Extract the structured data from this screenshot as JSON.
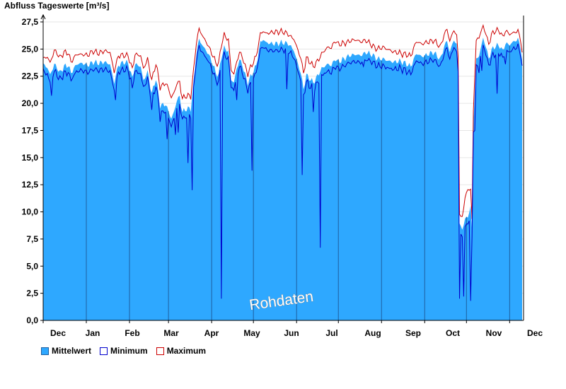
{
  "chart_data": {
    "type": "area",
    "title": "Abfluss Tageswerte [m³/s]",
    "xlabel": "",
    "ylabel": "Abfluss Tageswerte [m³/s]",
    "ylim": [
      0,
      27.5
    ],
    "yticks": [
      "0,0",
      "2,5",
      "5,0",
      "7,5",
      "10,0",
      "12,5",
      "15,0",
      "17,5",
      "20,0",
      "22,5",
      "25,0",
      "27,5"
    ],
    "xticks": [
      "Dec",
      "Jan",
      "Feb",
      "Mar",
      "Apr",
      "May",
      "Jun",
      "Jul",
      "Aug",
      "Sep",
      "Oct",
      "Nov",
      "Dec"
    ],
    "grid": true,
    "legend_position": "bottom-left",
    "watermark": "Rohdaten",
    "colors": {
      "mittelwert": "#2ea8ff",
      "minimum": "#0000cc",
      "maximum": "#cc0000",
      "month_line": "#1e5fa0"
    },
    "month_starts": [
      0,
      31,
      62,
      90,
      121,
      151,
      182,
      212,
      243,
      274,
      304,
      335,
      365
    ],
    "mean_anchors": [
      [
        0,
        23.6
      ],
      [
        3,
        23.3
      ],
      [
        5,
        22.6
      ],
      [
        8,
        23.6
      ],
      [
        10,
        23.3
      ],
      [
        12,
        22.8
      ],
      [
        15,
        23.4
      ],
      [
        18,
        23.5
      ],
      [
        20,
        22.8
      ],
      [
        24,
        23.6
      ],
      [
        28,
        23.7
      ],
      [
        32,
        23.5
      ],
      [
        36,
        23.8
      ],
      [
        40,
        23.7
      ],
      [
        44,
        23.8
      ],
      [
        48,
        23.6
      ],
      [
        51,
        21.9
      ],
      [
        54,
        23.5
      ],
      [
        58,
        23.8
      ],
      [
        61,
        23.7
      ],
      [
        64,
        22.3
      ],
      [
        66,
        23.6
      ],
      [
        70,
        23.4
      ],
      [
        72,
        22.1
      ],
      [
        75,
        22.9
      ],
      [
        78,
        20.9
      ],
      [
        81,
        22.3
      ],
      [
        84,
        19.8
      ],
      [
        88,
        19.9
      ],
      [
        92,
        18.6
      ],
      [
        94,
        19.2
      ],
      [
        96,
        20.3
      ],
      [
        98,
        20.6
      ],
      [
        100,
        19.2
      ],
      [
        103,
        19.5
      ],
      [
        106,
        19.5
      ],
      [
        108,
        21.9
      ],
      [
        110,
        24.6
      ],
      [
        112,
        25.9
      ],
      [
        115,
        25.2
      ],
      [
        118,
        24.7
      ],
      [
        121,
        23.9
      ],
      [
        124,
        22.8
      ],
      [
        126,
        22.6
      ],
      [
        128,
        24.3
      ],
      [
        130,
        25.1
      ],
      [
        133,
        24.8
      ],
      [
        135,
        22.2
      ],
      [
        137,
        21.9
      ],
      [
        139,
        23.2
      ],
      [
        141,
        24.0
      ],
      [
        143,
        23.6
      ],
      [
        145,
        22.6
      ],
      [
        147,
        21.9
      ],
      [
        150,
        22.7
      ],
      [
        153,
        23.5
      ],
      [
        156,
        25.6
      ],
      [
        158,
        25.9
      ],
      [
        160,
        25.6
      ],
      [
        164,
        25.5
      ],
      [
        168,
        25.5
      ],
      [
        172,
        25.6
      ],
      [
        176,
        25.5
      ],
      [
        180,
        24.9
      ],
      [
        183,
        23.6
      ],
      [
        185,
        22.8
      ],
      [
        187,
        21.3
      ],
      [
        189,
        22.6
      ],
      [
        192,
        22.2
      ],
      [
        194,
        21.9
      ],
      [
        196,
        22.3
      ],
      [
        200,
        23.2
      ],
      [
        204,
        23.6
      ],
      [
        207,
        23.5
      ],
      [
        210,
        24.1
      ],
      [
        212,
        23.8
      ],
      [
        216,
        24.1
      ],
      [
        220,
        24.4
      ],
      [
        224,
        24.5
      ],
      [
        228,
        24.4
      ],
      [
        232,
        24.7
      ],
      [
        236,
        24.5
      ],
      [
        240,
        24.1
      ],
      [
        244,
        24.1
      ],
      [
        248,
        23.9
      ],
      [
        252,
        23.8
      ],
      [
        256,
        23.9
      ],
      [
        260,
        23.7
      ],
      [
        264,
        23.4
      ],
      [
        268,
        24.6
      ],
      [
        272,
        24.3
      ],
      [
        276,
        24.5
      ],
      [
        280,
        24.7
      ],
      [
        283,
        24.4
      ],
      [
        285,
        24.0
      ],
      [
        288,
        25.2
      ],
      [
        290,
        25.8
      ],
      [
        292,
        24.7
      ],
      [
        295,
        25.9
      ],
      [
        297,
        25.3
      ],
      [
        298,
        23.6
      ],
      [
        299,
        9.0
      ],
      [
        301,
        8.3
      ],
      [
        303,
        9.4
      ],
      [
        305,
        9.5
      ],
      [
        307,
        10.5
      ],
      [
        308,
        8.3
      ],
      [
        309,
        18.3
      ],
      [
        311,
        24.0
      ],
      [
        313,
        24.4
      ],
      [
        316,
        26.0
      ],
      [
        318,
        25.2
      ],
      [
        320,
        24.1
      ],
      [
        322,
        24.9
      ],
      [
        325,
        25.3
      ],
      [
        328,
        25.3
      ],
      [
        330,
        24.8
      ],
      [
        332,
        25.5
      ],
      [
        335,
        25.4
      ],
      [
        338,
        25.7
      ],
      [
        341,
        25.9
      ],
      [
        343,
        25.1
      ],
      [
        344,
        24.0
      ]
    ],
    "min_dips": [
      [
        6,
        20.7
      ],
      [
        52,
        20.3
      ],
      [
        64,
        21.4
      ],
      [
        78,
        19.4
      ],
      [
        84,
        18.3
      ],
      [
        89,
        16.7
      ],
      [
        95,
        17.1
      ],
      [
        97,
        17.3
      ],
      [
        104,
        14.5
      ],
      [
        107,
        12.0
      ],
      [
        128,
        2.0
      ],
      [
        139,
        20.3
      ],
      [
        150,
        13.8
      ],
      [
        175,
        21.3
      ],
      [
        186,
        13.4
      ],
      [
        194,
        19.2
      ],
      [
        199,
        6.7
      ],
      [
        230,
        23.4
      ],
      [
        299,
        2.0
      ],
      [
        302,
        2.2
      ],
      [
        307,
        1.8
      ],
      [
        310,
        17.5
      ],
      [
        313,
        22.8
      ],
      [
        315,
        23.0
      ],
      [
        326,
        20.9
      ],
      [
        332,
        23.6
      ]
    ],
    "max_offsets": [
      [
        0,
        0.5
      ],
      [
        3,
        0.9
      ],
      [
        12,
        1.2
      ],
      [
        18,
        1.1
      ],
      [
        28,
        0.6
      ],
      [
        36,
        0.9
      ],
      [
        48,
        0.9
      ],
      [
        58,
        0.6
      ],
      [
        70,
        0.8
      ],
      [
        80,
        1.3
      ],
      [
        90,
        1.9
      ],
      [
        98,
        1.3
      ],
      [
        110,
        0.8
      ],
      [
        121,
        0.7
      ],
      [
        130,
        1.0
      ],
      [
        140,
        0.6
      ],
      [
        156,
        0.7
      ],
      [
        165,
        0.9
      ],
      [
        176,
        0.8
      ],
      [
        182,
        1.1
      ],
      [
        190,
        1.4
      ],
      [
        200,
        1.3
      ],
      [
        210,
        1.5
      ],
      [
        224,
        1.2
      ],
      [
        236,
        0.8
      ],
      [
        244,
        0.9
      ],
      [
        256,
        0.7
      ],
      [
        264,
        0.8
      ],
      [
        276,
        1.1
      ],
      [
        288,
        0.9
      ],
      [
        298,
        0.8
      ],
      [
        300,
        0.8
      ],
      [
        305,
        2.4
      ],
      [
        308,
        0.8
      ],
      [
        312,
        1.7
      ],
      [
        316,
        1.1
      ],
      [
        322,
        1.3
      ],
      [
        330,
        1.1
      ],
      [
        338,
        0.8
      ],
      [
        344,
        0.5
      ]
    ]
  }
}
